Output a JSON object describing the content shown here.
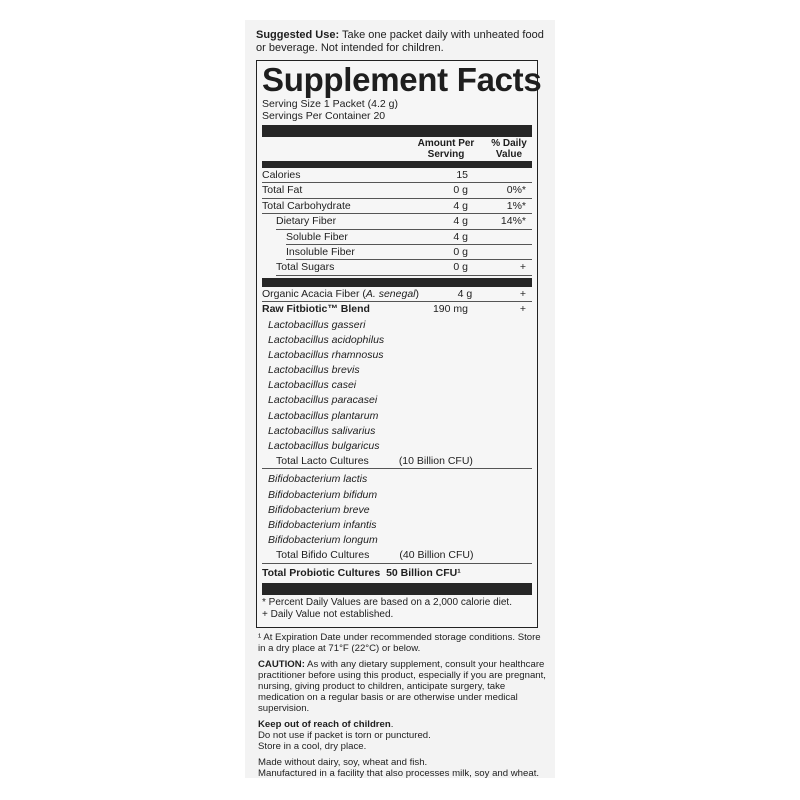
{
  "suggested_use": {
    "label": "Suggested Use:",
    "text": " Take one packet daily with unheated food or beverage. Not intended for children."
  },
  "title": "Supplement Facts",
  "serving_size": "Serving Size 1 Packet (4.2 g)",
  "servings_per_container": "Servings Per Container 20",
  "header": {
    "amount_line1": "Amount Per",
    "amount_line2": "Serving",
    "dv_line1": "% Daily",
    "dv_line2": "Value"
  },
  "nutrients": [
    {
      "name": "Calories",
      "amount": "15",
      "dv": ""
    },
    {
      "name": "Total Fat",
      "amount": "0 g",
      "dv": "0%*"
    },
    {
      "name": "Total Carbohydrate",
      "amount": "4 g",
      "dv": "1%*"
    },
    {
      "name": "Dietary Fiber",
      "amount": "4 g",
      "dv": "14%*"
    },
    {
      "name": "Soluble Fiber",
      "amount": "4 g",
      "dv": ""
    },
    {
      "name": "Insoluble Fiber",
      "amount": "0 g",
      "dv": ""
    },
    {
      "name": "Total Sugars",
      "amount": "0 g",
      "dv": "+"
    }
  ],
  "acacia": {
    "name": "Organic Acacia Fiber (",
    "italic": "A. senegal",
    "close": ")",
    "amount": "4 g",
    "dv": "+"
  },
  "blend": {
    "name": "Raw Fitbiotic™ Blend",
    "amount": "190 mg",
    "dv": "+"
  },
  "lacto": [
    "Lactobacillus gasseri",
    "Lactobacillus acidophilus",
    "Lactobacillus rhamnosus",
    "Lactobacillus brevis",
    "Lactobacillus casei",
    "Lactobacillus paracasei",
    "Lactobacillus plantarum",
    "Lactobacillus salivarius",
    "Lactobacillus bulgaricus"
  ],
  "lacto_total": {
    "name": "Total Lacto Cultures",
    "value": "(10 Billion CFU)"
  },
  "bifido": [
    "Bifidobacterium lactis",
    "Bifidobacterium bifidum",
    "Bifidobacterium breve",
    "Bifidobacterium infantis",
    "Bifidobacterium longum"
  ],
  "bifido_total": {
    "name": "Total Bifido Cultures",
    "value": "(40 Billion CFU)"
  },
  "probiotic_total": {
    "name": "Total Probiotic Cultures",
    "value": "50 Billion CFU¹"
  },
  "footnotes": [
    "* Percent Daily Values are based on a 2,000 calorie diet.",
    "+ Daily Value not established."
  ],
  "notes": {
    "expiration": "¹ At Expiration Date under recommended storage conditions. Store in a dry place at 71°F (22°C) or below.",
    "caution_label": "CAUTION:",
    "caution_text": " As with any dietary supplement, consult your healthcare practitioner before using this product, especially if you are pregnant, nursing, giving product to children, anticipate surgery, take medication on a regular basis or are otherwise under medical supervision.",
    "keep_out": "Keep out of reach of children",
    "keep_out_dot": ".",
    "packet": "Do not use if packet is torn or punctured.",
    "store": "Store in a cool, dry place.",
    "made_without": "Made without dairy, soy, wheat and fish.",
    "facility": "Manufactured in a facility that also processes milk, soy and wheat."
  }
}
